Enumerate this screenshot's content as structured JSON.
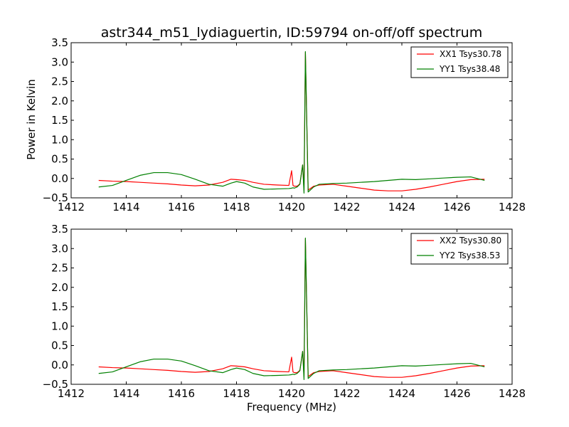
{
  "figure": {
    "title": "astr344_m51_lydiaguertin, ID:59794 on-off/off spectrum",
    "xlabel": "Frequency (MHz)",
    "ylabel": "Power in Kelvin"
  },
  "colors": {
    "xx": "#ff0000",
    "yy": "#008000",
    "frame": "#000000",
    "background": "#ffffff"
  },
  "chart_data": [
    {
      "type": "line",
      "title": "astr344_m51_lydiaguertin, ID:59794 on-off/off spectrum",
      "xlabel": "",
      "ylabel": "Power in Kelvin",
      "xlim": [
        1412,
        1428
      ],
      "ylim": [
        -0.5,
        3.5
      ],
      "xticks": [
        1412,
        1414,
        1416,
        1418,
        1420,
        1422,
        1424,
        1426,
        1428
      ],
      "xtick_labels": [
        "1412",
        "1414",
        "1416",
        "1418",
        "1420",
        "1422",
        "1424",
        "1426",
        "1428"
      ],
      "yticks": [
        -0.5,
        0.0,
        0.5,
        1.0,
        1.5,
        2.0,
        2.5,
        3.0,
        3.5
      ],
      "ytick_labels": [
        "−0.5",
        "0.0",
        "0.5",
        "1.0",
        "1.5",
        "2.0",
        "2.5",
        "3.0",
        "3.5"
      ],
      "legend_position": "top-right",
      "grid": false,
      "series": [
        {
          "name": "XX1 Tsys30.78",
          "color": "#ff0000",
          "x": [
            1413.0,
            1413.5,
            1414.0,
            1414.5,
            1415.0,
            1415.5,
            1416.0,
            1416.5,
            1417.0,
            1417.5,
            1417.8,
            1418.0,
            1418.3,
            1418.6,
            1419.0,
            1419.5,
            1419.9,
            1420.0,
            1420.05,
            1420.1,
            1420.2,
            1420.3,
            1420.4,
            1420.45,
            1420.5,
            1420.6,
            1420.8,
            1421.0,
            1421.5,
            1422.0,
            1422.5,
            1423.0,
            1423.5,
            1424.0,
            1424.5,
            1425.0,
            1425.5,
            1426.0,
            1426.5,
            1427.0
          ],
          "y": [
            -0.05,
            -0.07,
            -0.08,
            -0.1,
            -0.12,
            -0.14,
            -0.17,
            -0.19,
            -0.17,
            -0.1,
            -0.02,
            -0.03,
            -0.05,
            -0.1,
            -0.15,
            -0.17,
            -0.18,
            0.2,
            -0.18,
            -0.2,
            -0.2,
            -0.14,
            0.35,
            -0.3,
            3.25,
            -0.3,
            -0.2,
            -0.17,
            -0.15,
            -0.2,
            -0.25,
            -0.3,
            -0.32,
            -0.32,
            -0.28,
            -0.22,
            -0.15,
            -0.08,
            -0.03,
            -0.02
          ]
        },
        {
          "name": "YY1 Tsys38.48",
          "color": "#008000",
          "x": [
            1413.0,
            1413.5,
            1414.0,
            1414.5,
            1415.0,
            1415.5,
            1416.0,
            1416.5,
            1417.0,
            1417.5,
            1417.8,
            1418.0,
            1418.3,
            1418.6,
            1419.0,
            1419.5,
            1419.9,
            1420.0,
            1420.05,
            1420.1,
            1420.2,
            1420.3,
            1420.4,
            1420.45,
            1420.5,
            1420.6,
            1420.8,
            1421.0,
            1421.5,
            1422.0,
            1422.5,
            1423.0,
            1423.5,
            1424.0,
            1424.5,
            1425.0,
            1425.5,
            1426.0,
            1426.5,
            1427.0
          ],
          "y": [
            -0.22,
            -0.18,
            -0.05,
            0.08,
            0.15,
            0.15,
            0.1,
            -0.02,
            -0.15,
            -0.2,
            -0.12,
            -0.08,
            -0.12,
            -0.22,
            -0.28,
            -0.27,
            -0.26,
            -0.25,
            -0.24,
            -0.25,
            -0.22,
            -0.15,
            0.35,
            -0.38,
            3.27,
            -0.35,
            -0.22,
            -0.15,
            -0.13,
            -0.12,
            -0.1,
            -0.08,
            -0.05,
            -0.02,
            -0.03,
            -0.01,
            0.01,
            0.03,
            0.04,
            -0.05
          ]
        }
      ]
    },
    {
      "type": "line",
      "title": "",
      "xlabel": "Frequency (MHz)",
      "ylabel": "",
      "xlim": [
        1412,
        1428
      ],
      "ylim": [
        -0.5,
        3.5
      ],
      "xticks": [
        1412,
        1414,
        1416,
        1418,
        1420,
        1422,
        1424,
        1426,
        1428
      ],
      "xtick_labels": [
        "1412",
        "1414",
        "1416",
        "1418",
        "1420",
        "1422",
        "1424",
        "1426",
        "1428"
      ],
      "yticks": [
        -0.5,
        0.0,
        0.5,
        1.0,
        1.5,
        2.0,
        2.5,
        3.0,
        3.5
      ],
      "ytick_labels": [
        "−0.5",
        "0.0",
        "0.5",
        "1.0",
        "1.5",
        "2.0",
        "2.5",
        "3.0",
        "3.5"
      ],
      "legend_position": "top-right",
      "grid": false,
      "series": [
        {
          "name": "XX2 Tsys30.80",
          "color": "#ff0000",
          "x": [
            1413.0,
            1413.5,
            1414.0,
            1414.5,
            1415.0,
            1415.5,
            1416.0,
            1416.5,
            1417.0,
            1417.5,
            1417.8,
            1418.0,
            1418.3,
            1418.6,
            1419.0,
            1419.5,
            1419.9,
            1420.0,
            1420.05,
            1420.1,
            1420.2,
            1420.3,
            1420.4,
            1420.45,
            1420.5,
            1420.6,
            1420.8,
            1421.0,
            1421.5,
            1422.0,
            1422.5,
            1423.0,
            1423.5,
            1424.0,
            1424.5,
            1425.0,
            1425.5,
            1426.0,
            1426.5,
            1427.0
          ],
          "y": [
            -0.05,
            -0.07,
            -0.08,
            -0.1,
            -0.12,
            -0.14,
            -0.17,
            -0.19,
            -0.17,
            -0.1,
            -0.02,
            -0.03,
            -0.05,
            -0.1,
            -0.15,
            -0.17,
            -0.18,
            0.2,
            -0.18,
            -0.2,
            -0.2,
            -0.14,
            0.35,
            -0.3,
            3.25,
            -0.3,
            -0.2,
            -0.17,
            -0.15,
            -0.2,
            -0.25,
            -0.3,
            -0.32,
            -0.32,
            -0.28,
            -0.22,
            -0.15,
            -0.08,
            -0.03,
            -0.02
          ]
        },
        {
          "name": "YY2 Tsys38.53",
          "color": "#008000",
          "x": [
            1413.0,
            1413.5,
            1414.0,
            1414.5,
            1415.0,
            1415.5,
            1416.0,
            1416.5,
            1417.0,
            1417.5,
            1417.8,
            1418.0,
            1418.3,
            1418.6,
            1419.0,
            1419.5,
            1419.9,
            1420.0,
            1420.05,
            1420.1,
            1420.2,
            1420.3,
            1420.4,
            1420.45,
            1420.5,
            1420.6,
            1420.8,
            1421.0,
            1421.5,
            1422.0,
            1422.5,
            1423.0,
            1423.5,
            1424.0,
            1424.5,
            1425.0,
            1425.5,
            1426.0,
            1426.5,
            1427.0
          ],
          "y": [
            -0.22,
            -0.18,
            -0.05,
            0.08,
            0.15,
            0.15,
            0.1,
            -0.02,
            -0.15,
            -0.2,
            -0.12,
            -0.08,
            -0.12,
            -0.22,
            -0.28,
            -0.27,
            -0.26,
            -0.25,
            -0.24,
            -0.25,
            -0.22,
            -0.15,
            0.35,
            -0.38,
            3.27,
            -0.35,
            -0.22,
            -0.15,
            -0.13,
            -0.12,
            -0.1,
            -0.08,
            -0.05,
            -0.02,
            -0.03,
            -0.01,
            0.01,
            0.03,
            0.04,
            -0.05
          ]
        }
      ]
    }
  ]
}
